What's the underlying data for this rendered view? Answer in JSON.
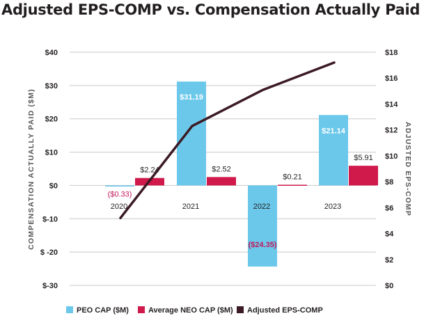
{
  "colors": {
    "peo": "#6cc8ea",
    "neo": "#cf1a4b",
    "eps": "#3b1a24",
    "negative_label": "#c2185b",
    "grid": "#c8c8c8"
  },
  "chart_data": {
    "type": "bar",
    "title": "Adjusted EPS-COMP vs. Compensation Actually Paid",
    "categories": [
      "2020",
      "2021",
      "2022",
      "2023"
    ],
    "series": [
      {
        "name": "PEO CAP ($M)",
        "kind": "bar",
        "axis": "left",
        "values": [
          -0.33,
          31.19,
          -24.35,
          21.14
        ],
        "labels": [
          "($0.33)",
          "$31.19",
          "($24.35)",
          "$21.14"
        ]
      },
      {
        "name": "Average NEO CAP ($M)",
        "kind": "bar",
        "axis": "left",
        "values": [
          2.24,
          2.52,
          0.21,
          5.91
        ],
        "labels": [
          "$2.24",
          "$2.52",
          "$0.21",
          "$5.91"
        ]
      },
      {
        "name": "Adjusted EPS-COMP",
        "kind": "line",
        "axis": "right",
        "values": [
          5.2,
          12.3,
          15.1,
          17.2
        ]
      }
    ],
    "ylabel": "COMPENSATION ACTUALLY PAID ($M)",
    "y2label": "ADJUSTED EPS-COMP",
    "ylim": [
      -30,
      40
    ],
    "y2lim": [
      0,
      18
    ],
    "yticks": [
      40,
      30,
      20,
      10,
      0,
      -10,
      -20,
      -30
    ],
    "ytick_labels": [
      "$40",
      "$30",
      "$20",
      "$10",
      "$0",
      "$-10",
      "$ -20",
      "$-30"
    ],
    "y2ticks": [
      18,
      16,
      14,
      12,
      10,
      8,
      6,
      4,
      2,
      0
    ],
    "y2tick_labels": [
      "$18",
      "$16",
      "$14",
      "$12",
      "$10",
      "$8",
      "$6",
      "$4",
      "$2",
      "$0"
    ],
    "grid": true,
    "legend_position": "bottom"
  }
}
